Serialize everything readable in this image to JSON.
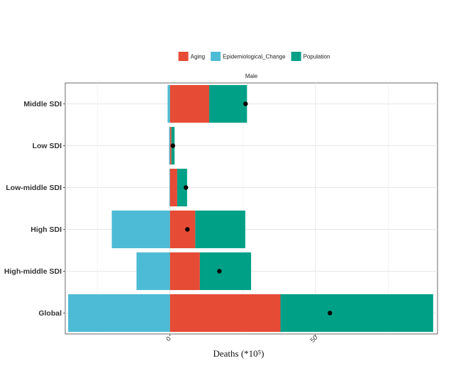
{
  "chart_data": {
    "type": "bar",
    "orientation": "horizontal",
    "stacked": true,
    "facet_label": "Male",
    "xlabel": "Deaths (*10⁵)",
    "ylabel": "",
    "xlim": [
      -36,
      92
    ],
    "x_ticks": [
      0,
      50
    ],
    "grid": true,
    "legend_position": "top",
    "categories": [
      "Global",
      "High-middle SDI",
      "High SDI",
      "Low-middle SDI",
      "Low SDI",
      "Middle SDI"
    ],
    "series": [
      {
        "name": "Aging",
        "color": "#e64b35",
        "values": [
          38,
          10.3,
          8.7,
          2.5,
          0.5,
          13.5
        ]
      },
      {
        "name": "Epidemiological_Change",
        "color": "#4dbbd5",
        "values": [
          -35,
          -11.5,
          -20,
          -0.2,
          -0.3,
          -0.8
        ]
      },
      {
        "name": "Population",
        "color": "#00a087",
        "values": [
          52.5,
          17.6,
          17.2,
          3.4,
          1.1,
          13
        ]
      }
    ],
    "net_values": [
      55,
      17,
      6,
      5.5,
      1,
      26
    ]
  }
}
